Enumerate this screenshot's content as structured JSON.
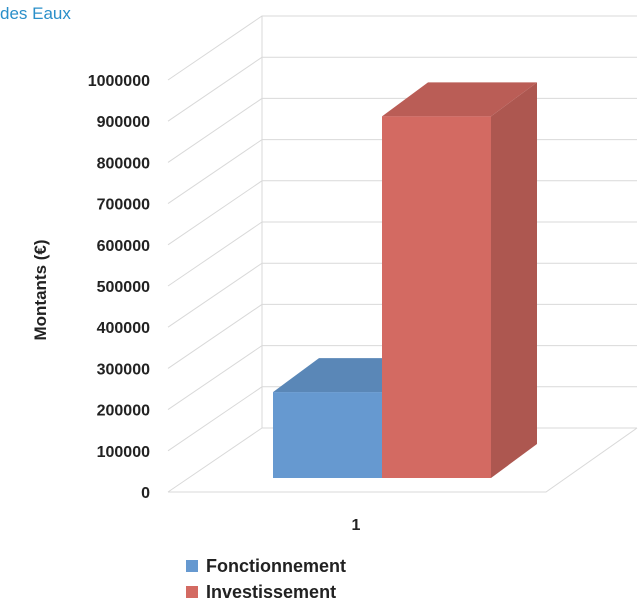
{
  "header": {
    "text": "des Eaux"
  },
  "chart_data": {
    "type": "bar",
    "categories": [
      "1"
    ],
    "series": [
      {
        "name": "Fonctionnement",
        "values": [
          215000
        ],
        "color": "#6699d0"
      },
      {
        "name": "Investissement",
        "values": [
          905000
        ],
        "color": "#d36a62"
      }
    ],
    "ylabel": "Montants (€)",
    "xlabel": "",
    "ylim": [
      0,
      1000000
    ],
    "yticks": [
      "0",
      "100000",
      "200000",
      "300000",
      "400000",
      "500000",
      "600000",
      "700000",
      "800000",
      "900000",
      "1000000"
    ],
    "grid": true,
    "style": "3d",
    "legend_position": "bottom"
  }
}
